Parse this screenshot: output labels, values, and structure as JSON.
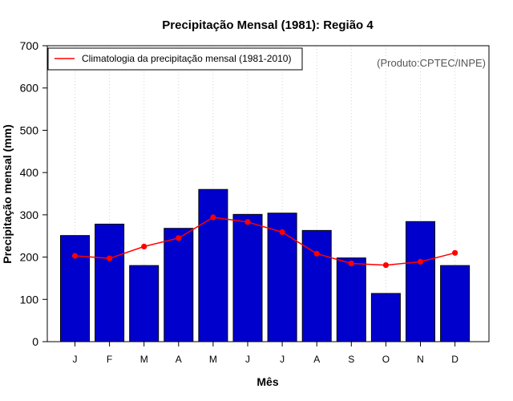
{
  "chart_data": {
    "type": "bar",
    "title": "Precipitação Mensal (1981): Região 4",
    "xlabel": "Mês",
    "ylabel": "Precipitação mensal (mm)",
    "ylim": [
      0,
      700
    ],
    "yticks": [
      0,
      100,
      200,
      300,
      400,
      500,
      600,
      700
    ],
    "categories": [
      "J",
      "F",
      "M",
      "A",
      "M",
      "J",
      "J",
      "A",
      "S",
      "O",
      "N",
      "D"
    ],
    "series": [
      {
        "name": "Precipitação mensal (1981)",
        "type": "bar",
        "color": "#0000cc",
        "values": [
          251,
          278,
          180,
          268,
          360,
          301,
          304,
          263,
          198,
          114,
          284,
          180
        ]
      },
      {
        "name": "Climatologia da precipitação mensal (1981-2010)",
        "type": "line",
        "color": "#ff0000",
        "values": [
          203,
          197,
          225,
          245,
          294,
          283,
          259,
          208,
          185,
          181,
          189,
          210
        ]
      }
    ],
    "legend": {
      "position": "top-left",
      "entries": [
        "Climatologia da precipitação mensal (1981-2010)"
      ]
    },
    "annotation": "(Produto:CPTEC/INPE)",
    "grid": "vertical-dotted"
  }
}
